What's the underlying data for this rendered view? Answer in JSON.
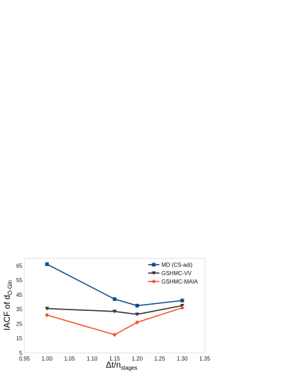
{
  "chart_data": {
    "type": "line",
    "title": "",
    "xlabel": "Δt/n",
    "xlabel_sub": "stages",
    "ylabel": "IACF of d",
    "ylabel_sub": "O-Gln",
    "xlim": [
      0.95,
      1.35
    ],
    "ylim": [
      5,
      70
    ],
    "xticks": [
      0.95,
      1.0,
      1.05,
      1.1,
      1.15,
      1.2,
      1.25,
      1.3,
      1.35
    ],
    "xtick_labels": [
      "0.95",
      "1.00",
      "1.05",
      "1.10",
      "1.15",
      "1.20",
      "1.25",
      "1.30",
      "1.35"
    ],
    "yticks": [
      5,
      15,
      25,
      35,
      45,
      55,
      65
    ],
    "ytick_labels": [
      "5",
      "15",
      "25",
      "35",
      "45",
      "55",
      "65"
    ],
    "grid": false,
    "legend_position": "top-right",
    "series": [
      {
        "name": "MD (CS-adi)",
        "color": "#0f4c8a",
        "marker": "square",
        "x": [
          1.0,
          1.15,
          1.2,
          1.3
        ],
        "y": [
          66,
          42,
          37.5,
          41
        ]
      },
      {
        "name": "GSHMC-VV",
        "color": "#333333",
        "marker": "triangle-down",
        "x": [
          1.0,
          1.15,
          1.2,
          1.3
        ],
        "y": [
          35.5,
          33.5,
          31.5,
          37.5
        ]
      },
      {
        "name": "GSHMC-MAIA",
        "color": "#f0552a",
        "marker": "diamond",
        "x": [
          1.0,
          1.15,
          1.2,
          1.3
        ],
        "y": [
          31,
          17.5,
          26,
          36
        ]
      }
    ]
  }
}
